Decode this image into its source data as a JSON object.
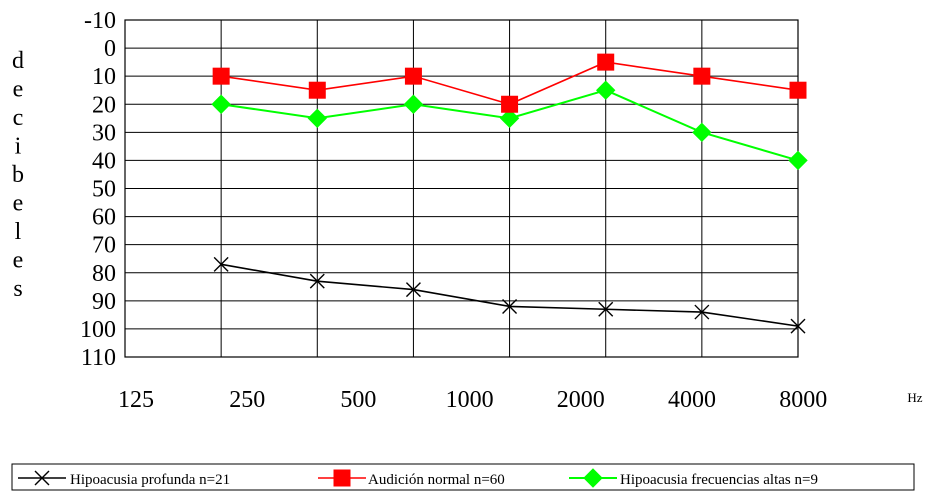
{
  "chart_data": {
    "type": "line",
    "categories": [
      "125",
      "250",
      "500",
      "1000",
      "2000",
      "4000",
      "8000"
    ],
    "x_unit": "Hz",
    "ylabel": "decibeles",
    "ylim": [
      -10,
      110
    ],
    "y_inverted": true,
    "y_ticks": [
      "-10",
      "0",
      "10",
      "20",
      "30",
      "40",
      "50",
      "60",
      "70",
      "80",
      "90",
      "100",
      "110"
    ],
    "grid": true,
    "legend_position": "bottom",
    "series": [
      {
        "name": "Hipoacusia profunda n=21",
        "color": "#000000",
        "marker": "x",
        "values": [
          77,
          83,
          86,
          92,
          93,
          94,
          99
        ]
      },
      {
        "name": "Audición normal n=60",
        "color": "#ff0000",
        "marker": "square",
        "values": [
          10,
          15,
          10,
          20,
          5,
          10,
          15
        ]
      },
      {
        "name": "Hipoacusia frecuencias altas n=9",
        "color": "#00ff00",
        "marker": "diamond",
        "values": [
          20,
          25,
          20,
          25,
          15,
          30,
          40
        ]
      }
    ]
  }
}
